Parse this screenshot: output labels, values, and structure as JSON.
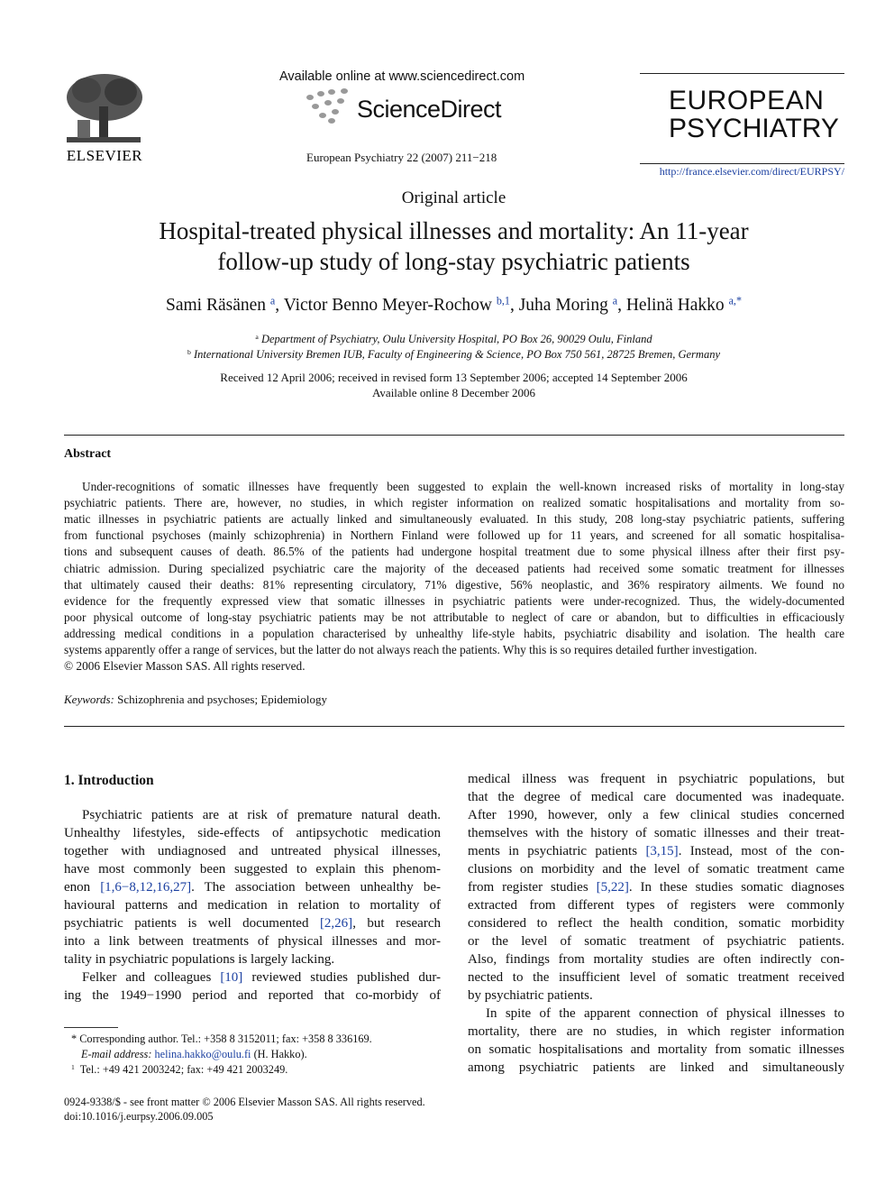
{
  "header": {
    "publisher": "ELSEVIER",
    "available_online": "Available online at www.sciencedirect.com",
    "brand": "ScienceDirect",
    "journal_ref": "European Psychiatry 22 (2007) 211−218",
    "journal_name": [
      "EUROPEAN",
      "PSYCHIATRY"
    ],
    "url": "http://france.elsevier.com/direct/EURPSY/"
  },
  "article_type": "Original article",
  "title": [
    "Hospital-treated physical illnesses and mortality: An 11-year",
    "follow-up study of long-stay psychiatric patients"
  ],
  "authors": [
    {
      "name": "Sami Räsänen",
      "mark": "a",
      "sep": ","
    },
    {
      "name": "Victor Benno Meyer-Rochow",
      "mark": "b,1",
      "sep": ","
    },
    {
      "name": "Juha Moring",
      "mark": "a",
      "sep": ","
    },
    {
      "name": "Helinä Hakko",
      "mark": "a,*"
    }
  ],
  "affiliations": [
    {
      "mark": "a",
      "text": "Department of Psychiatry, Oulu University Hospital, PO Box 26, 90029 Oulu, Finland"
    },
    {
      "mark": "b",
      "text": "International University Bremen IUB, Faculty of Engineering & Science, PO Box 750 561, 28725 Bremen, Germany"
    }
  ],
  "dates": [
    "Received 12 April 2006; received in revised form 13 September 2006; accepted 14 September 2006",
    "Available online 8 December 2006"
  ],
  "abstract": {
    "heading": "Abstract",
    "lines": [
      "Under-recognitions of somatic illnesses have frequently been suggested to explain the well-known increased risks of mortality in long-stay",
      "psychiatric patients. There are, however, no studies, in which register information on realized somatic hospitalisations and mortality from so-",
      "matic illnesses in psychiatric patients are actually linked and simultaneously evaluated. In this study, 208 long-stay psychiatric patients, suffering",
      "from functional psychoses (mainly schizophrenia) in Northern Finland were followed up for 11 years, and screened for all somatic hospitalisa-",
      "tions and subsequent causes of death. 86.5% of the patients had undergone hospital treatment due to some physical illness after their first psy-",
      "chiatric admission. During specialized psychiatric care the majority of the deceased patients had received some somatic treatment for illnesses",
      "that ultimately caused their deaths: 81% representing circulatory, 71% digestive, 56% neoplastic, and 36% respiratory ailments. We found no",
      "evidence for the frequently expressed view that somatic illnesses in psychiatric patients were under-recognized. Thus, the widely-documented",
      "poor physical outcome of long-stay psychiatric patients may be not attributable to neglect of care or abandon, but to difficulties in efficaciously",
      "addressing medical conditions in a population characterised by unhealthy life-style habits, psychiatric disability and isolation. The health care",
      "systems apparently offer a range of services, but the latter do not always reach the patients. Why this is so requires detailed further investigation.",
      "© 2006 Elsevier Masson SAS. All rights reserved."
    ]
  },
  "keywords": {
    "label": "Keywords:",
    "text": "Schizophrenia and psychoses; Epidemiology"
  },
  "section_heading": "1. Introduction",
  "columns": [
    [
      {
        "lines": [
          "Psychiatric patients are at risk of premature natural death.",
          "Unhealthy lifestyles, side-effects of antipsychotic medication",
          "together with undiagnosed and untreated physical illnesses,",
          "have most commonly been suggested to explain this phenom-",
          "enon [1,6−8,12,16,27]. The association between unhealthy be-",
          "havioural patterns and medication in relation to mortality of",
          "psychiatric patients is well documented [2,26], but research",
          "into a link between treatments of physical illnesses and mor-",
          "tality in psychiatric populations is largely lacking."
        ]
      },
      {
        "lines": [
          "Felker and colleagues [10] reviewed studies published dur-",
          "ing the 1949−1990 period and reported that co-morbidy of"
        ],
        "continues": true
      }
    ],
    [
      {
        "lines": [
          "medical illness was frequent in psychiatric populations, but",
          "that the degree of medical care documented was inadequate.",
          "After 1990, however, only a few clinical studies concerned",
          "themselves with the history of somatic illnesses and their treat-",
          "ments in psychiatric patients [3,15]. Instead, most of the con-",
          "clusions on morbidity and the level of somatic treatment came",
          "from register studies [5,22]. In these studies somatic diagnoses",
          "extracted from different types of registers were commonly",
          "considered to reflect the health condition, somatic morbidity",
          "or the level of somatic treatment of psychiatric patients.",
          "Also, findings from mortality studies are often indirectly con-",
          "nected to the insufficient level of somatic treatment received",
          "by psychiatric patients."
        ],
        "continued": true
      },
      {
        "lines": [
          "In spite of the apparent connection of physical illnesses to",
          "mortality, there are no studies, in which register information",
          "on somatic hospitalisations and mortality from somatic illnesses",
          "among psychiatric patients are linked and simultaneously"
        ],
        "continues": true
      }
    ]
  ],
  "footnotes": {
    "corresponding": {
      "mark": "*",
      "text": "Corresponding author. Tel.: +358 8 3152011; fax: +358 8 336169."
    },
    "email": {
      "label": "E-mail address:",
      "address": "helina.hakko@oulu.fi",
      "after": "(H. Hakko)."
    },
    "note": {
      "mark": "1",
      "text": "Tel.: +49 421 2003242; fax: +49 421 2003249."
    }
  },
  "footer": [
    "0924-9338/$ - see front matter © 2006 Elsevier Masson SAS. All rights reserved.",
    "doi:10.1016/j.eurpsy.2006.09.005"
  ]
}
